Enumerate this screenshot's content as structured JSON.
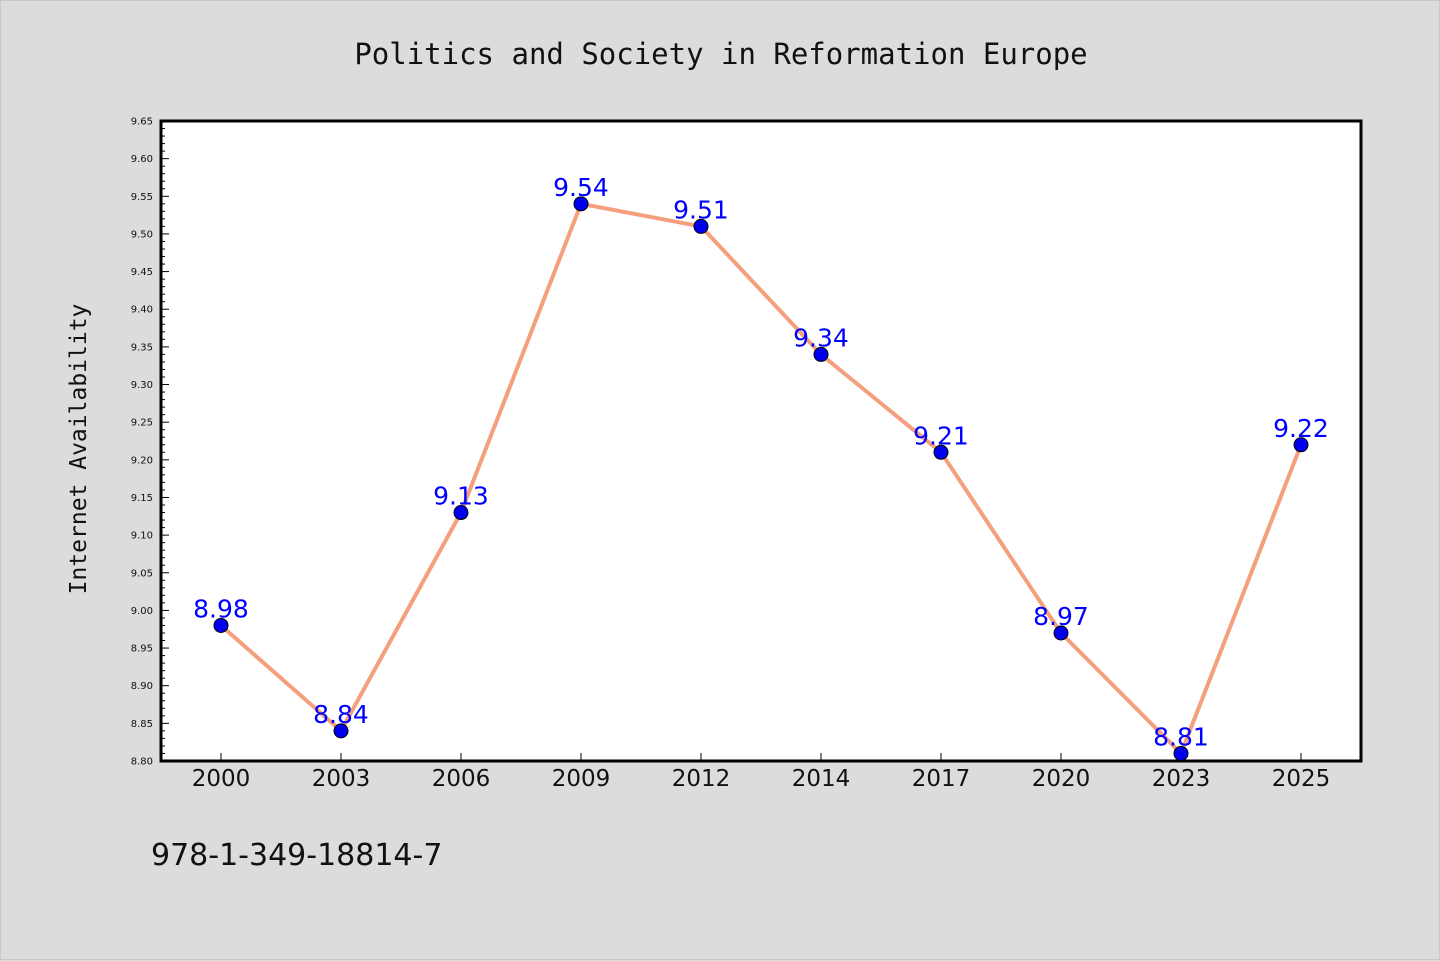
{
  "chart_data": {
    "type": "line",
    "title": "Politics and Society in Reformation Europe",
    "ylabel": "Internet Availability",
    "xlabel": "",
    "categories": [
      "2000",
      "2003",
      "2006",
      "2009",
      "2012",
      "2014",
      "2017",
      "2020",
      "2023",
      "2025"
    ],
    "series": [
      {
        "values": [
          8.98,
          8.84,
          9.13,
          9.54,
          9.51,
          9.34,
          9.21,
          8.97,
          8.81,
          9.22
        ]
      }
    ],
    "ylim": [
      8.8,
      9.65
    ],
    "yticks": [
      "8.80",
      "8.85",
      "8.90",
      "8.95",
      "9.00",
      "9.05",
      "9.10",
      "9.15",
      "9.20",
      "9.25",
      "9.30",
      "9.35",
      "9.40",
      "9.45",
      "9.50",
      "9.55",
      "9.60",
      "9.65"
    ],
    "grid": false,
    "legend": "none",
    "colors": {
      "line": "#f4a07e",
      "marker": "#0000ee",
      "labels": "#0000ff",
      "background": "#dcdcdc",
      "plot_background": "#ffffff"
    }
  },
  "footer": {
    "text": "978-1-349-18814-7"
  }
}
